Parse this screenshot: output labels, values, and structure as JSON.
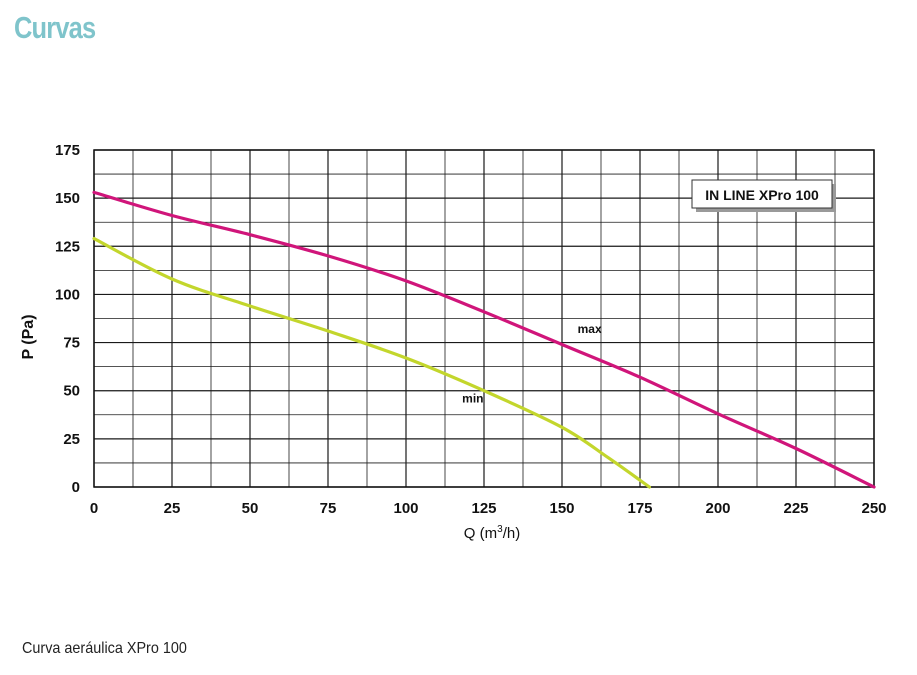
{
  "page": {
    "heading": "Curvas",
    "caption": "Curva aeráulica XPro 100"
  },
  "chart_data": {
    "type": "line",
    "legend_box": "IN LINE XPro 100",
    "xlabel_main": "Q (m",
    "xlabel_sup": "3",
    "xlabel_end": "/h)",
    "ylabel": "P (Pa)",
    "xlim": [
      0,
      250
    ],
    "ylim": [
      0,
      175
    ],
    "x_ticks": [
      0,
      25,
      50,
      75,
      100,
      125,
      150,
      175,
      200,
      225,
      250
    ],
    "y_ticks": [
      0,
      25,
      50,
      75,
      100,
      125,
      150,
      175
    ],
    "x_tick_labels": [
      "0",
      "25",
      "50",
      "75",
      "100",
      "125",
      "150",
      "175",
      "200",
      "225",
      "250"
    ],
    "y_tick_labels": [
      "0",
      "25",
      "50",
      "75",
      "100",
      "125",
      "150",
      "175"
    ],
    "grid": true,
    "legend_position": "top-right",
    "series": [
      {
        "name": "max",
        "color": "#d0157a",
        "label_at": [
          155,
          80
        ],
        "points": [
          [
            0,
            153
          ],
          [
            25,
            141
          ],
          [
            50,
            131
          ],
          [
            75,
            120
          ],
          [
            100,
            107
          ],
          [
            125,
            91
          ],
          [
            150,
            74
          ],
          [
            175,
            57
          ],
          [
            200,
            38
          ],
          [
            225,
            20
          ],
          [
            250,
            0
          ]
        ]
      },
      {
        "name": "min",
        "color": "#c3d62c",
        "label_at": [
          118,
          44
        ],
        "points": [
          [
            0,
            129
          ],
          [
            25,
            108
          ],
          [
            50,
            94
          ],
          [
            75,
            81
          ],
          [
            100,
            67
          ],
          [
            125,
            50
          ],
          [
            150,
            31
          ],
          [
            165,
            15
          ],
          [
            178,
            0
          ]
        ]
      }
    ]
  }
}
